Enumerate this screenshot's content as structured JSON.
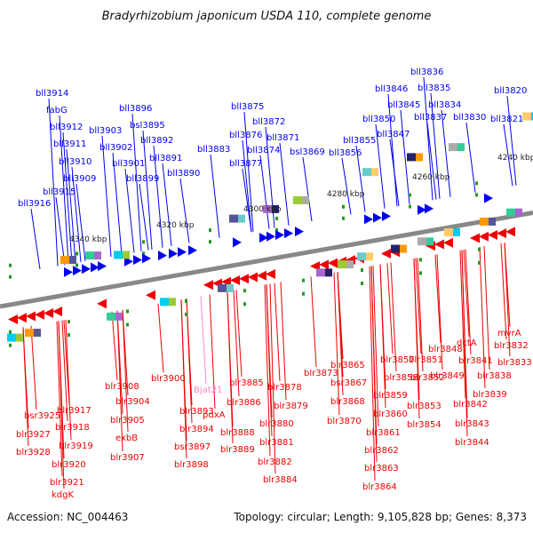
{
  "header": {
    "title": "Bradyrhizobium japonicum USDA 110, complete genome"
  },
  "footer": {
    "accession": "Accession: NC_004463",
    "summary": "Topology: circular; Length: 9,105,828 bp; Genes: 8,373"
  },
  "colors": {
    "plus_strand": "#0000ee",
    "minus_strand": "#ee0000",
    "rna": "#ff88cc",
    "backbone": "#888888"
  },
  "kbp_ticks": [
    "4340 kbp",
    "4320 kbp",
    "4300 kbp",
    "4280 kbp",
    "4260 kbp",
    "4240 kbp"
  ],
  "top_labels": [
    "bll3914",
    "fabG",
    "bll3912",
    "bll3911",
    "bll3910",
    "bll3909",
    "bll3915",
    "bll3916",
    "bll3903",
    "bll3902",
    "bll3901",
    "bll3896",
    "bsl3895",
    "bll3892",
    "bll3891",
    "bll3899",
    "bll3890",
    "bll3883",
    "bll3875",
    "bll3872",
    "bll3876",
    "bll3871",
    "bll3874",
    "bll3877",
    "bsl3869",
    "bll3855",
    "bll3856",
    "bll3846",
    "bll3850",
    "bll3845",
    "bll3847",
    "bll3836",
    "bll3835",
    "bll3834",
    "bll3837",
    "bll3830",
    "bll3820",
    "bll3821"
  ],
  "bottom_labels": [
    "bsr3925",
    "blr3917",
    "blr3927",
    "blr3918",
    "blr3928",
    "blr3919",
    "blr3920",
    "blr3921",
    "kdgK",
    "blr3908",
    "blr3904",
    "blr3905",
    "exbB",
    "blr3907",
    "blr3900",
    "blr3893",
    "blr3894",
    "bsr3897",
    "blr3898",
    "Bjat21",
    "blr3885",
    "pdxA",
    "blr3886",
    "blr3888",
    "blr3889",
    "blr3880",
    "blr3881",
    "blr3882",
    "blr3884",
    "blr3878",
    "blr3879",
    "blr3873",
    "blr3865",
    "bsr3867",
    "blr3868",
    "blr3870",
    "blr3857",
    "blr3858",
    "blr3859",
    "blr3860",
    "blr3861",
    "blr3862",
    "blr3863",
    "blr3864",
    "blr3851",
    "blr3852",
    "blr3853",
    "blr3854",
    "blr3848",
    "blr3849",
    "blr3841",
    "blr3842",
    "blr3843",
    "blr3844",
    "dctA",
    "blr3839",
    "blr3838",
    "mvrA",
    "blr3832",
    "blr3833"
  ]
}
